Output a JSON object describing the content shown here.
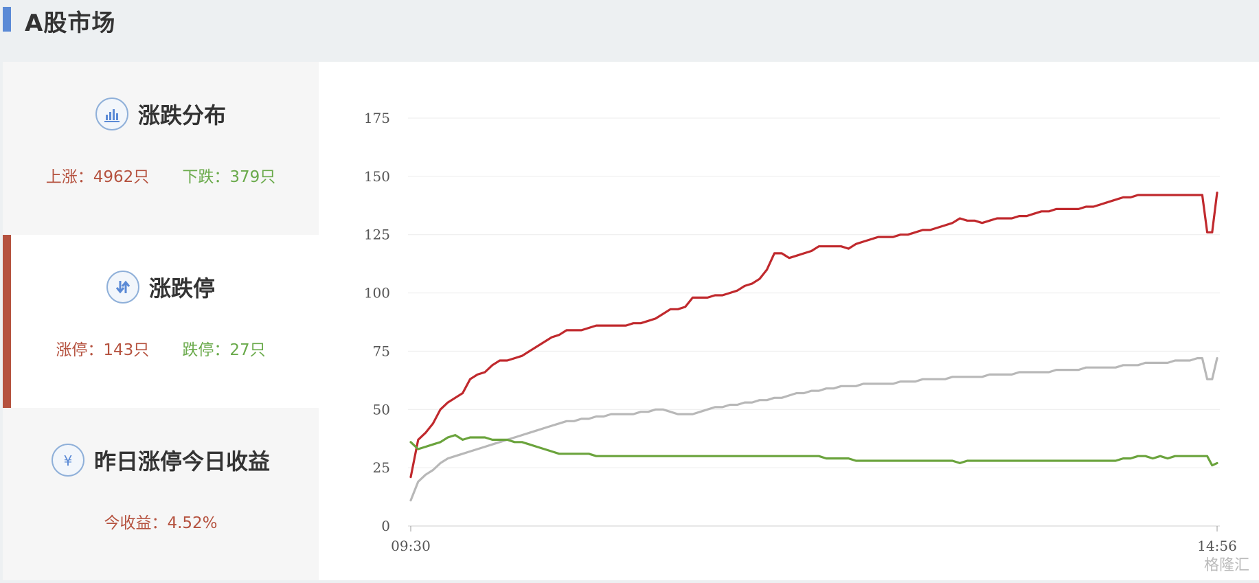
{
  "header": {
    "title": "A股市场"
  },
  "cards": [
    {
      "title": "涨跌分布",
      "icon": "bar-chart-icon",
      "stats": [
        {
          "label": "上涨：4962只",
          "tone": "up"
        },
        {
          "label": "下跌：379只",
          "tone": "down"
        }
      ]
    },
    {
      "title": "涨跌停",
      "icon": "up-down-arrows-icon",
      "active": true,
      "stats": [
        {
          "label": "涨停：143只",
          "tone": "up"
        },
        {
          "label": "跌停：27只",
          "tone": "down"
        }
      ]
    },
    {
      "title": "昨日涨停今日收益",
      "icon": "yen-icon",
      "stats": [
        {
          "label": "今收益：4.52%",
          "tone": "up"
        }
      ]
    }
  ],
  "watermark": "格隆汇",
  "colors": {
    "accent": "#b5523f",
    "up": "#b5523f",
    "down": "#6aaa4b",
    "line_red": "#c0292d",
    "line_gray": "#b8b8b8",
    "line_green": "#6aa33c"
  },
  "chart_data": {
    "type": "line",
    "title": "",
    "xlabel": "",
    "ylabel": "",
    "ylim": [
      0,
      175
    ],
    "y_ticks": [
      0,
      25,
      50,
      75,
      100,
      125,
      150,
      175
    ],
    "x_tick_labels": [
      "09:30",
      "14:56"
    ],
    "x_range": [
      0,
      326
    ],
    "legend": "none",
    "grid": true,
    "series": [
      {
        "color": "#c0292d",
        "x": [
          0,
          3,
          6,
          9,
          12,
          15,
          18,
          21,
          24,
          27,
          30,
          33,
          36,
          39,
          42,
          45,
          48,
          51,
          54,
          57,
          60,
          63,
          66,
          69,
          72,
          75,
          78,
          81,
          84,
          87,
          90,
          93,
          96,
          99,
          102,
          105,
          108,
          111,
          114,
          117,
          120,
          123,
          126,
          129,
          132,
          135,
          138,
          141,
          144,
          147,
          150,
          153,
          156,
          159,
          162,
          165,
          168,
          171,
          174,
          177,
          180,
          183,
          186,
          189,
          192,
          195,
          198,
          201,
          204,
          207,
          210,
          213,
          216,
          219,
          222,
          225,
          228,
          231,
          234,
          237,
          240,
          243,
          246,
          249,
          252,
          255,
          258,
          261,
          264,
          267,
          270,
          273,
          276,
          279,
          282,
          285,
          288,
          291,
          294,
          297,
          300,
          303,
          306,
          309,
          312,
          315,
          318,
          320,
          322,
          324,
          326
        ],
        "values": [
          21,
          37,
          40,
          44,
          50,
          53,
          55,
          57,
          63,
          65,
          66,
          69,
          71,
          71,
          72,
          73,
          75,
          77,
          79,
          81,
          82,
          84,
          84,
          84,
          85,
          86,
          86,
          86,
          86,
          86,
          87,
          87,
          88,
          89,
          91,
          93,
          93,
          94,
          98,
          98,
          98,
          99,
          99,
          100,
          101,
          103,
          104,
          106,
          110,
          117,
          117,
          115,
          116,
          117,
          118,
          120,
          120,
          120,
          120,
          119,
          121,
          122,
          123,
          124,
          124,
          124,
          125,
          125,
          126,
          127,
          127,
          128,
          129,
          130,
          132,
          131,
          131,
          130,
          131,
          132,
          132,
          132,
          133,
          133,
          134,
          135,
          135,
          136,
          136,
          136,
          136,
          137,
          137,
          138,
          139,
          140,
          141,
          141,
          142,
          142,
          142,
          142,
          142,
          142,
          142,
          142,
          142,
          142,
          126,
          126,
          143
        ]
      },
      {
        "color": "#b8b8b8",
        "x": [
          0,
          3,
          6,
          9,
          12,
          15,
          18,
          21,
          24,
          27,
          30,
          33,
          36,
          39,
          42,
          45,
          48,
          51,
          54,
          57,
          60,
          63,
          66,
          69,
          72,
          75,
          78,
          81,
          84,
          87,
          90,
          93,
          96,
          99,
          102,
          105,
          108,
          111,
          114,
          117,
          120,
          123,
          126,
          129,
          132,
          135,
          138,
          141,
          144,
          147,
          150,
          153,
          156,
          159,
          162,
          165,
          168,
          171,
          174,
          177,
          180,
          183,
          186,
          189,
          192,
          195,
          198,
          201,
          204,
          207,
          210,
          213,
          216,
          219,
          222,
          225,
          228,
          231,
          234,
          237,
          240,
          243,
          246,
          249,
          252,
          255,
          258,
          261,
          264,
          267,
          270,
          273,
          276,
          279,
          282,
          285,
          288,
          291,
          294,
          297,
          300,
          303,
          306,
          309,
          312,
          315,
          318,
          320,
          322,
          324,
          326
        ],
        "values": [
          11,
          19,
          22,
          24,
          27,
          29,
          30,
          31,
          32,
          33,
          34,
          35,
          36,
          37,
          38,
          39,
          40,
          41,
          42,
          43,
          44,
          45,
          45,
          46,
          46,
          47,
          47,
          48,
          48,
          48,
          48,
          49,
          49,
          50,
          50,
          49,
          48,
          48,
          48,
          49,
          50,
          51,
          51,
          52,
          52,
          53,
          53,
          54,
          54,
          55,
          55,
          56,
          57,
          57,
          58,
          58,
          59,
          59,
          60,
          60,
          60,
          61,
          61,
          61,
          61,
          61,
          62,
          62,
          62,
          63,
          63,
          63,
          63,
          64,
          64,
          64,
          64,
          64,
          65,
          65,
          65,
          65,
          66,
          66,
          66,
          66,
          66,
          67,
          67,
          67,
          67,
          68,
          68,
          68,
          68,
          68,
          69,
          69,
          69,
          70,
          70,
          70,
          70,
          71,
          71,
          71,
          72,
          72,
          63,
          63,
          72
        ]
      },
      {
        "color": "#6aa33c",
        "x": [
          0,
          3,
          6,
          9,
          12,
          15,
          18,
          21,
          24,
          27,
          30,
          33,
          36,
          39,
          42,
          45,
          48,
          51,
          54,
          57,
          60,
          63,
          66,
          69,
          72,
          75,
          78,
          81,
          84,
          87,
          90,
          93,
          96,
          99,
          102,
          105,
          108,
          111,
          114,
          117,
          120,
          123,
          126,
          129,
          132,
          135,
          138,
          141,
          144,
          147,
          150,
          153,
          156,
          159,
          162,
          165,
          168,
          171,
          174,
          177,
          180,
          183,
          186,
          189,
          192,
          195,
          198,
          201,
          204,
          207,
          210,
          213,
          216,
          219,
          222,
          225,
          228,
          231,
          234,
          237,
          240,
          243,
          246,
          249,
          252,
          255,
          258,
          261,
          264,
          267,
          270,
          273,
          276,
          279,
          282,
          285,
          288,
          291,
          294,
          297,
          300,
          303,
          306,
          309,
          312,
          315,
          318,
          320,
          322,
          324,
          326
        ],
        "values": [
          36,
          33,
          34,
          35,
          36,
          38,
          39,
          37,
          38,
          38,
          38,
          37,
          37,
          37,
          36,
          36,
          35,
          34,
          33,
          32,
          31,
          31,
          31,
          31,
          31,
          30,
          30,
          30,
          30,
          30,
          30,
          30,
          30,
          30,
          30,
          30,
          30,
          30,
          30,
          30,
          30,
          30,
          30,
          30,
          30,
          30,
          30,
          30,
          30,
          30,
          30,
          30,
          30,
          30,
          30,
          30,
          29,
          29,
          29,
          29,
          28,
          28,
          28,
          28,
          28,
          28,
          28,
          28,
          28,
          28,
          28,
          28,
          28,
          28,
          27,
          28,
          28,
          28,
          28,
          28,
          28,
          28,
          28,
          28,
          28,
          28,
          28,
          28,
          28,
          28,
          28,
          28,
          28,
          28,
          28,
          28,
          29,
          29,
          30,
          30,
          29,
          30,
          29,
          30,
          30,
          30,
          30,
          30,
          30,
          26,
          27
        ]
      }
    ]
  }
}
